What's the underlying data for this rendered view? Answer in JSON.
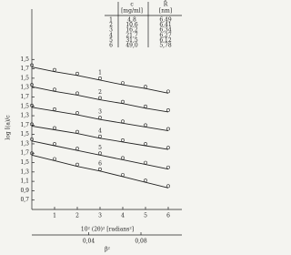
{
  "chart_data": {
    "type": "line",
    "ylabel": "log I(a)/c",
    "xlabel": "10² (2θ)² [radians²]",
    "x2label": "β²",
    "xlim": [
      0,
      6.6
    ],
    "xticks": [
      1,
      2,
      3,
      4,
      5,
      6
    ],
    "x2lim": [
      -0.0035,
      0.1113
    ],
    "x2ticks": [
      {
        "value": 0.04,
        "label": "0,04"
      },
      {
        "value": 0.08,
        "label": "0,08"
      }
    ],
    "ylim": [
      0,
      17
    ],
    "yticks": [
      {
        "value": 1,
        "label": "0,7"
      },
      {
        "value": 2,
        "label": "0,9"
      },
      {
        "value": 3,
        "label": "1,1"
      },
      {
        "value": 4,
        "label": "1,3"
      },
      {
        "value": 5,
        "label": "1,5"
      },
      {
        "value": 6,
        "label": "1,7"
      },
      {
        "value": 7,
        "label": "1,3"
      },
      {
        "value": 8,
        "label": "1,5"
      },
      {
        "value": 9,
        "label": "1,7"
      },
      {
        "value": 10,
        "label": "1,3"
      },
      {
        "value": 11,
        "label": "1,5"
      },
      {
        "value": 12,
        "label": "1,7"
      },
      {
        "value": 13,
        "label": "1,3"
      },
      {
        "value": 14,
        "label": "1,5"
      },
      {
        "value": 15,
        "label": "1,7"
      },
      {
        "value": 16,
        "label": "1,5"
      }
    ],
    "x": [
      0,
      1,
      2,
      3,
      4,
      5,
      6
    ],
    "series": [
      {
        "name": "1",
        "color": "#222",
        "values": [
          15.2,
          14.7,
          14.3,
          13.8,
          13.3,
          12.9,
          12.4
        ]
      },
      {
        "name": "2",
        "color": "#222",
        "values": [
          13.1,
          12.6,
          12.2,
          11.7,
          11.3,
          10.8,
          10.4
        ]
      },
      {
        "name": "3",
        "color": "#222",
        "values": [
          10.9,
          10.5,
          10.1,
          9.6,
          9.2,
          8.8,
          8.4
        ]
      },
      {
        "name": "4",
        "color": "#222",
        "values": [
          8.9,
          8.5,
          8.1,
          7.6,
          7.2,
          6.8,
          6.4
        ]
      },
      {
        "name": "5",
        "color": "#222",
        "values": [
          7.3,
          6.8,
          6.3,
          5.8,
          5.3,
          4.8,
          4.3
        ]
      },
      {
        "name": "6",
        "color": "#222",
        "values": [
          5.8,
          5.2,
          4.6,
          4.1,
          3.5,
          2.9,
          2.3
        ]
      }
    ],
    "table": {
      "headers": [
        "c",
        "[mg/ml]",
        "R̄",
        "[nm]"
      ],
      "rows": [
        [
          "1",
          "4,8",
          "6,49"
        ],
        [
          "2",
          "10,6",
          "6,41"
        ],
        [
          "3",
          "16,2",
          "6,34"
        ],
        [
          "4",
          "21,7",
          "6,27"
        ],
        [
          "5",
          "31,5",
          "6,12"
        ],
        [
          "6",
          "49,0",
          "5,78"
        ]
      ]
    }
  }
}
